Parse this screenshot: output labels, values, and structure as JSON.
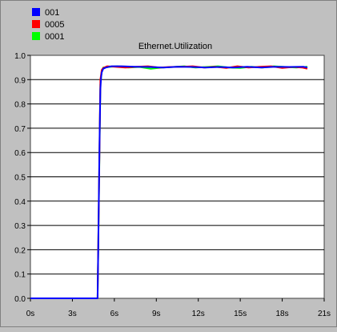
{
  "chart_data": {
    "type": "line",
    "title": "Ethernet.Utilization",
    "xlabel": "",
    "ylabel": "",
    "xlim": [
      0,
      21
    ],
    "ylim": [
      0,
      1.0
    ],
    "x_ticks": [
      0,
      3,
      6,
      9,
      12,
      15,
      18,
      21
    ],
    "x_tick_labels": [
      "0s",
      "3s",
      "6s",
      "9s",
      "12s",
      "15s",
      "18s",
      "21s"
    ],
    "y_ticks": [
      0.0,
      0.1,
      0.2,
      0.3,
      0.4,
      0.5,
      0.6,
      0.7,
      0.8,
      0.9,
      1.0
    ],
    "y_tick_labels": [
      "0.0",
      "0.1",
      "0.2",
      "0.3",
      "0.4",
      "0.5",
      "0.6",
      "0.7",
      "0.8",
      "0.9",
      "1.0"
    ],
    "grid": "horizontal",
    "legend": "top-left",
    "background": "#c0c0c0",
    "plot_background": "#ffffff",
    "series": [
      {
        "name": "001",
        "color": "#0000ff",
        "x": [
          0,
          4.8,
          4.85,
          4.9,
          4.95,
          5.0,
          5.05,
          5.1,
          5.2,
          5.4,
          5.8,
          6.5,
          7.5,
          8.5,
          9.5,
          10.5,
          11.5,
          12.5,
          13.5,
          14.5,
          15.5,
          16.5,
          17.5,
          18.5,
          19.5,
          19.8
        ],
        "y": [
          0,
          0,
          0.22,
          0.45,
          0.68,
          0.86,
          0.91,
          0.93,
          0.945,
          0.95,
          0.955,
          0.955,
          0.953,
          0.952,
          0.95,
          0.953,
          0.952,
          0.95,
          0.952,
          0.95,
          0.953,
          0.95,
          0.953,
          0.952,
          0.953,
          0.95
        ]
      },
      {
        "name": "0005",
        "color": "#ff0000",
        "x": [
          4.8,
          5.0,
          5.1,
          5.2,
          5.5,
          6.0,
          6.8,
          7.6,
          8.4,
          9.2,
          10.0,
          10.8,
          11.6,
          12.4,
          13.2,
          14.0,
          14.8,
          15.6,
          16.4,
          17.2,
          18.0,
          18.8,
          19.4,
          19.8
        ],
        "y": [
          0.0,
          0.9,
          0.94,
          0.948,
          0.955,
          0.953,
          0.95,
          0.953,
          0.955,
          0.95,
          0.952,
          0.953,
          0.955,
          0.95,
          0.953,
          0.948,
          0.955,
          0.95,
          0.953,
          0.955,
          0.948,
          0.952,
          0.95,
          0.945
        ]
      },
      {
        "name": "0001",
        "color": "#00ff00",
        "x": [
          4.8,
          5.0,
          5.1,
          5.2,
          5.6,
          6.2,
          7.0,
          7.8,
          8.6,
          9.4,
          10.2,
          11.0,
          11.8,
          12.6,
          13.4,
          14.2,
          15.0,
          15.8,
          16.6,
          17.4,
          18.2,
          19.0,
          19.8
        ],
        "y": [
          0.0,
          0.88,
          0.935,
          0.95,
          0.952,
          0.955,
          0.95,
          0.952,
          0.945,
          0.95,
          0.952,
          0.955,
          0.95,
          0.952,
          0.955,
          0.95,
          0.948,
          0.953,
          0.95,
          0.955,
          0.952,
          0.95,
          0.953
        ]
      }
    ]
  }
}
